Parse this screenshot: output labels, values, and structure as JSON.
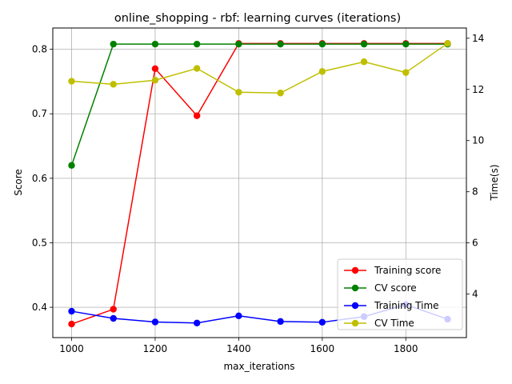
{
  "chart_data": {
    "type": "line",
    "title": "online_shopping - rbf: learning curves (iterations)",
    "xlabel": "max_iterations",
    "ylabel": "Score",
    "y2label": "Time(s)",
    "x": [
      1000,
      1100,
      1200,
      1300,
      1400,
      1500,
      1600,
      1700,
      1800,
      1900
    ],
    "xlim": [
      955,
      1945
    ],
    "ylim": [
      0.353,
      0.833
    ],
    "y2lim": [
      2.3,
      14.4
    ],
    "xticks": [
      1000,
      1200,
      1400,
      1600,
      1800
    ],
    "yticks": [
      "0.4",
      "0.5",
      "0.6",
      "0.7",
      "0.8"
    ],
    "y2ticks": [
      "4",
      "6",
      "8",
      "10",
      "12",
      "14"
    ],
    "grid": true,
    "legend_position": "lower-right",
    "series": [
      {
        "name": "Training score",
        "color": "#ff0000",
        "axis": "left",
        "values": [
          0.374,
          0.397,
          0.77,
          0.697,
          0.809,
          0.809,
          0.809,
          0.809,
          0.809,
          0.809
        ]
      },
      {
        "name": "CV score",
        "color": "#008000",
        "axis": "left",
        "values": [
          0.62,
          0.808,
          0.808,
          0.808,
          0.808,
          0.808,
          0.808,
          0.808,
          0.808,
          0.808
        ]
      },
      {
        "name": "Training Time",
        "color": "#0000ff",
        "axis": "right",
        "values": [
          3.33,
          3.05,
          2.91,
          2.87,
          3.15,
          2.93,
          2.9,
          3.12,
          3.59,
          3.02
        ]
      },
      {
        "name": "CV Time",
        "color": "#bfbf00",
        "axis": "right",
        "values": [
          12.32,
          12.2,
          12.36,
          12.82,
          11.89,
          11.86,
          12.7,
          13.08,
          12.66,
          13.8
        ]
      }
    ]
  }
}
